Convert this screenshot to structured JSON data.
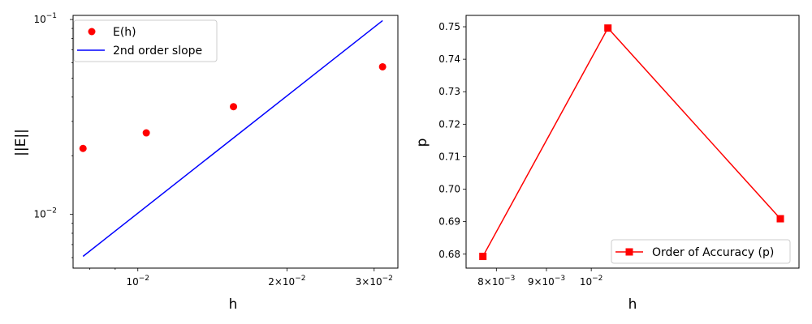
{
  "chart_data": [
    {
      "type": "line",
      "xscale": "log",
      "yscale": "log",
      "xlabel": "h",
      "ylabel": "||E||",
      "xlim": [
        0.0074,
        0.0335
      ],
      "ylim": [
        0.0053,
        0.105
      ],
      "x_ticks": [
        {
          "value": 0.01,
          "base": "10",
          "exp": "−2",
          "coef": ""
        },
        {
          "value": 0.02,
          "base": "10",
          "exp": "−2",
          "coef": "2×"
        },
        {
          "value": 0.03,
          "base": "10",
          "exp": "−2",
          "coef": "3×"
        }
      ],
      "y_ticks": [
        {
          "value": 0.1,
          "base": "10",
          "exp": "−1",
          "coef": ""
        },
        {
          "value": 0.01,
          "base": "10",
          "exp": "−2",
          "coef": ""
        }
      ],
      "legend_position": "top-left",
      "series": [
        {
          "name": "E(h)",
          "style": "markers",
          "marker": "circle",
          "color": "#ff0000",
          "x": [
            0.00775,
            0.0104,
            0.0156,
            0.0312
          ],
          "y": [
            0.0218,
            0.0262,
            0.0357,
            0.0572
          ]
        },
        {
          "name": "2nd order slope",
          "style": "line",
          "color": "#0000ff",
          "x": [
            0.00775,
            0.0312
          ],
          "y": [
            0.00609,
            0.0987
          ]
        }
      ]
    },
    {
      "type": "line",
      "xscale": "log",
      "yscale": "linear",
      "xlabel": "h",
      "ylabel": "p",
      "xlim": [
        0.00745,
        0.0163
      ],
      "ylim": [
        0.6757,
        0.7535
      ],
      "x_ticks": [
        {
          "value": 0.008,
          "base": "10",
          "exp": "−3",
          "coef": "8×"
        },
        {
          "value": 0.009,
          "base": "10",
          "exp": "−3",
          "coef": "9×"
        },
        {
          "value": 0.01,
          "base": "10",
          "exp": "−2",
          "coef": ""
        }
      ],
      "y_ticks": [
        "0.68",
        "0.69",
        "0.70",
        "0.71",
        "0.72",
        "0.73",
        "0.74",
        "0.75"
      ],
      "legend_position": "lower-right",
      "series": [
        {
          "name": "Order of Accuracy (p)",
          "style": "line+markers",
          "marker": "square",
          "color": "#ff0000",
          "x": [
            0.00775,
            0.0104,
            0.0156
          ],
          "y": [
            0.6793,
            0.7496,
            0.6909
          ]
        }
      ]
    }
  ]
}
